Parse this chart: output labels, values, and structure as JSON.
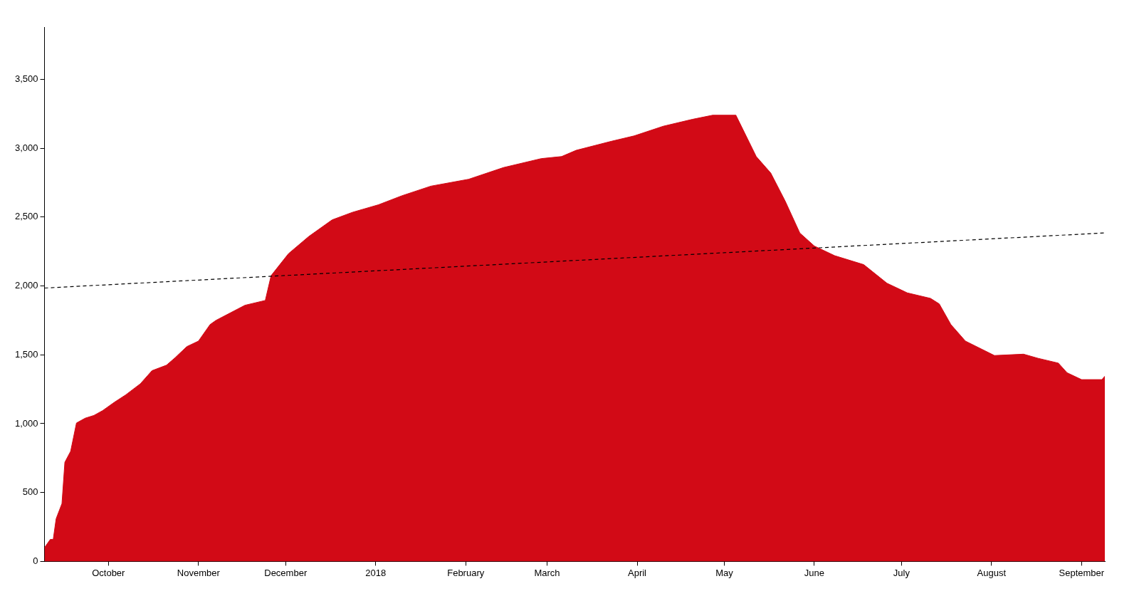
{
  "chart_data": {
    "type": "area",
    "x": [
      "2017-09-09",
      "2017-09-11",
      "2017-09-12",
      "2017-09-13",
      "2017-09-15",
      "2017-09-16",
      "2017-09-18",
      "2017-09-20",
      "2017-09-23",
      "2017-09-26",
      "2017-09-29",
      "2017-10-03",
      "2017-10-07",
      "2017-10-12",
      "2017-10-16",
      "2017-10-21",
      "2017-10-24",
      "2017-10-28",
      "2017-11-01",
      "2017-11-05",
      "2017-11-07",
      "2017-11-12",
      "2017-11-17",
      "2017-11-24",
      "2017-11-26",
      "2017-11-29",
      "2017-12-02",
      "2017-12-09",
      "2017-12-17",
      "2017-12-24",
      "2018-01-02",
      "2018-01-10",
      "2018-01-20",
      "2018-02-02",
      "2018-02-14",
      "2018-02-27",
      "2018-03-06",
      "2018-03-11",
      "2018-03-23",
      "2018-03-31",
      "2018-04-10",
      "2018-04-20",
      "2018-04-27",
      "2018-05-05",
      "2018-05-12",
      "2018-05-17",
      "2018-05-22",
      "2018-05-27",
      "2018-06-01",
      "2018-06-08",
      "2018-06-18",
      "2018-06-26",
      "2018-07-03",
      "2018-07-11",
      "2018-07-14",
      "2018-07-18",
      "2018-07-23",
      "2018-08-02",
      "2018-08-12",
      "2018-08-17",
      "2018-08-24",
      "2018-08-27",
      "2018-09-01",
      "2018-09-08",
      "2018-09-09"
    ],
    "series": [
      {
        "type": "area",
        "color": "#d20a16",
        "values": [
          100,
          160,
          160,
          310,
          420,
          720,
          800,
          1005,
          1040,
          1060,
          1095,
          1155,
          1210,
          1290,
          1385,
          1425,
          1480,
          1560,
          1600,
          1720,
          1750,
          1805,
          1860,
          1895,
          2075,
          2155,
          2235,
          2360,
          2480,
          2535,
          2590,
          2655,
          2725,
          2775,
          2860,
          2925,
          2940,
          2985,
          3050,
          3090,
          3160,
          3210,
          3240,
          3240,
          2940,
          2820,
          2615,
          2385,
          2290,
          2220,
          2155,
          2020,
          1950,
          1910,
          1870,
          1720,
          1600,
          1495,
          1505,
          1475,
          1440,
          1370,
          1320,
          1320,
          1345
        ]
      },
      {
        "type": "line",
        "color": "#000000",
        "line_style": "dashed",
        "x": [
          "2017-09-09",
          "2018-09-09"
        ],
        "values": [
          1985,
          2385
        ]
      }
    ],
    "xlim": [
      "2017-09-09",
      "2018-09-09"
    ],
    "xticks": [
      {
        "value": "2017-10-01",
        "label": "October"
      },
      {
        "value": "2017-11-01",
        "label": "November"
      },
      {
        "value": "2017-12-01",
        "label": "December"
      },
      {
        "value": "2018-01-01",
        "label": "2018"
      },
      {
        "value": "2018-02-01",
        "label": "February"
      },
      {
        "value": "2018-03-01",
        "label": "March"
      },
      {
        "value": "2018-04-01",
        "label": "April"
      },
      {
        "value": "2018-05-01",
        "label": "May"
      },
      {
        "value": "2018-06-01",
        "label": "June"
      },
      {
        "value": "2018-07-01",
        "label": "July"
      },
      {
        "value": "2018-08-01",
        "label": "August"
      },
      {
        "value": "2018-09-01",
        "label": "September"
      }
    ],
    "ylim": [
      0,
      3880
    ],
    "yticks": [
      0,
      500,
      {
        "value": 1000,
        "label": "1,000"
      },
      {
        "value": 1500,
        "label": "1,500"
      },
      {
        "value": 2000,
        "label": "2,000"
      },
      {
        "value": 2500,
        "label": "2,500"
      },
      {
        "value": 3000,
        "label": "3,000"
      },
      {
        "value": 3500,
        "label": "3,500"
      }
    ],
    "grid": false,
    "legend": false
  }
}
